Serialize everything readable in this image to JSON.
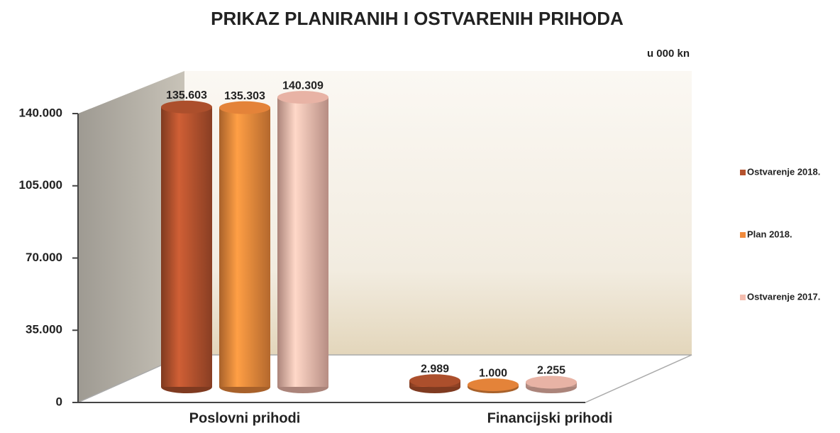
{
  "chart_data": {
    "type": "bar",
    "title": "PRIKAZ PLANIRANIH I OSTVARENIH PRIHODA",
    "annotation": "u 000 kn",
    "categories": [
      "Poslovni prihodi",
      "Financijski prihodi"
    ],
    "series": [
      {
        "name": "Ostvarenje 2018.",
        "color": "#b5532e",
        "values": [
          135603,
          2989
        ],
        "value_labels": [
          "135.603",
          "2.989"
        ]
      },
      {
        "name": "Plan 2018.",
        "color": "#f08a3c",
        "values": [
          135303,
          1000
        ],
        "value_labels": [
          "135.303",
          "1.000"
        ]
      },
      {
        "name": "Ostvarenje 2017.",
        "color": "#f4bcae",
        "values": [
          140309,
          2255
        ],
        "value_labels": [
          "140.309",
          "2.255"
        ]
      }
    ],
    "ylim": [
      0,
      140000
    ],
    "yticks": [
      0,
      {
        "value": 35000,
        "label": "35.000"
      },
      {
        "value": 70000,
        "label": "70.000"
      },
      {
        "value": 105000,
        "label": "105.000"
      },
      {
        "value": 140000,
        "label": "140.000"
      }
    ],
    "legend": "right"
  }
}
